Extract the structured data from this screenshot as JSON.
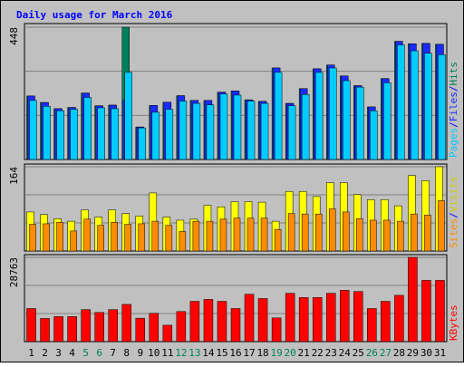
{
  "chart_data": [
    {
      "type": "bar",
      "title": "Daily usage for March 2016",
      "panel": "hits-files-pages",
      "y_max_label": "448",
      "ylim": [
        0,
        448
      ],
      "grid": true,
      "categories": [
        "1",
        "2",
        "3",
        "4",
        "5",
        "6",
        "7",
        "8",
        "9",
        "10",
        "11",
        "12",
        "13",
        "14",
        "15",
        "16",
        "17",
        "18",
        "19",
        "20",
        "21",
        "22",
        "23",
        "24",
        "25",
        "26",
        "27",
        "28",
        "29",
        "30",
        "31"
      ],
      "series": [
        {
          "name": "Hits",
          "color": "#00805a",
          "values": [
            215,
            193,
            172,
            176,
            225,
            182,
            184,
            448,
            110,
            183,
            194,
            216,
            200,
            200,
            228,
            232,
            202,
            197,
            310,
            190,
            240,
            307,
            320,
            283,
            250,
            178,
            274,
            400,
            392,
            393,
            390
          ]
        },
        {
          "name": "Files",
          "color": "#1a2bff",
          "values": [
            215,
            193,
            172,
            176,
            225,
            182,
            184,
            200,
            110,
            183,
            194,
            216,
            200,
            200,
            228,
            232,
            202,
            197,
            310,
            190,
            240,
            307,
            320,
            283,
            250,
            178,
            274,
            400,
            392,
            393,
            390
          ]
        },
        {
          "name": "Pages",
          "color": "#00ccff",
          "values": [
            200,
            180,
            165,
            170,
            210,
            175,
            172,
            295,
            107,
            160,
            170,
            198,
            190,
            185,
            222,
            218,
            198,
            190,
            295,
            182,
            220,
            295,
            310,
            267,
            245,
            165,
            260,
            388,
            368,
            360,
            355
          ]
        }
      ]
    },
    {
      "type": "bar",
      "panel": "visits-sites",
      "y_max_label": "164",
      "ylim": [
        0,
        164
      ],
      "grid": true,
      "categories": [
        "1",
        "2",
        "3",
        "4",
        "5",
        "6",
        "7",
        "8",
        "9",
        "10",
        "11",
        "12",
        "13",
        "14",
        "15",
        "16",
        "17",
        "18",
        "19",
        "20",
        "21",
        "22",
        "23",
        "24",
        "25",
        "26",
        "27",
        "28",
        "29",
        "30",
        "31"
      ],
      "series": [
        {
          "name": "Visits",
          "color": "#ffff00",
          "values": [
            76,
            71,
            63,
            58,
            80,
            66,
            80,
            73,
            68,
            113,
            66,
            60,
            62,
            89,
            86,
            96,
            96,
            95,
            58,
            116,
            116,
            106,
            133,
            133,
            110,
            100,
            100,
            88,
            147,
            137,
            164
          ]
        },
        {
          "name": "Sites",
          "color": "#ff8c00",
          "values": [
            52,
            53,
            56,
            39,
            62,
            50,
            56,
            52,
            53,
            58,
            50,
            38,
            58,
            58,
            62,
            64,
            64,
            64,
            42,
            73,
            72,
            72,
            82,
            76,
            63,
            60,
            60,
            58,
            72,
            70,
            98
          ]
        }
      ]
    },
    {
      "type": "bar",
      "panel": "kbytes",
      "y_max_label": "28763",
      "ylim": [
        0,
        28763
      ],
      "grid": true,
      "categories": [
        "1",
        "2",
        "3",
        "4",
        "5",
        "6",
        "7",
        "8",
        "9",
        "10",
        "11",
        "12",
        "13",
        "14",
        "15",
        "16",
        "17",
        "18",
        "19",
        "20",
        "21",
        "22",
        "23",
        "24",
        "25",
        "26",
        "27",
        "28",
        "29",
        "30",
        "31"
      ],
      "series": [
        {
          "name": "KBytes",
          "color": "#ff0000",
          "values": [
            11300,
            7900,
            8550,
            8550,
            10930,
            9950,
            10930,
            12700,
            8000,
            9650,
            5600,
            10270,
            13750,
            14400,
            13750,
            11300,
            16180,
            14700,
            8090,
            16500,
            15050,
            15050,
            16500,
            17500,
            17120,
            11300,
            13750,
            15800,
            28763,
            20900,
            20900
          ]
        }
      ]
    }
  ],
  "legends": {
    "panel1": [
      "Hits",
      "/",
      "Files",
      "/",
      "Pages"
    ],
    "panel2": [
      "Visits",
      "/",
      "Sites"
    ],
    "panel3": [
      "KBytes"
    ]
  },
  "weekend_days": [
    "5",
    "6",
    "12",
    "13",
    "19",
    "20",
    "26",
    "27"
  ],
  "colors": {
    "background": "#c0c0c0",
    "plot_bg": "#c0c0c0",
    "title": "#0000ff",
    "axis_label": "#000000",
    "weekday_label": "#000000",
    "weekend_label": "#00805a",
    "hits": "#00805a",
    "files": "#1a2bff",
    "pages": "#00ccff",
    "visits": "#ffff00",
    "sites": "#ff8c00",
    "kbytes": "#ff0000",
    "separator": "#0000ff"
  }
}
